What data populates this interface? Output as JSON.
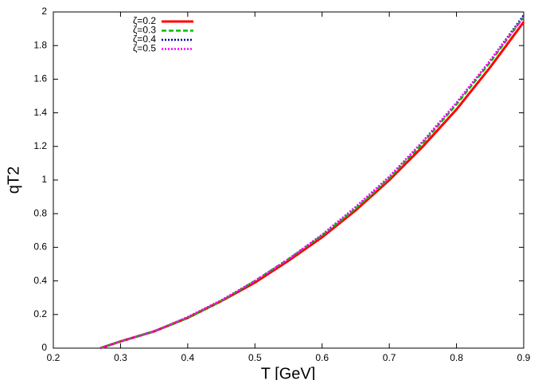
{
  "chart_data": {
    "type": "line",
    "xlabel": "T [GeV]",
    "ylabel": "qT2",
    "x": [
      0.27,
      0.3,
      0.35,
      0.4,
      0.45,
      0.5,
      0.55,
      0.6,
      0.65,
      0.7,
      0.75,
      0.8,
      0.85,
      0.9
    ],
    "series": [
      {
        "name": "ζ=0.2",
        "color": "#ff0000",
        "style": "solid",
        "values": [
          0,
          0.04,
          0.1,
          0.18,
          0.28,
          0.39,
          0.52,
          0.66,
          0.82,
          1.0,
          1.2,
          1.42,
          1.67,
          1.94
        ]
      },
      {
        "name": "ζ=0.3",
        "color": "#00c000",
        "style": "dashed",
        "values": [
          0,
          0.04,
          0.1,
          0.18,
          0.28,
          0.4,
          0.53,
          0.67,
          0.83,
          1.01,
          1.22,
          1.45,
          1.7,
          1.97
        ]
      },
      {
        "name": "ζ=0.4",
        "color": "#0000a0",
        "style": "dotted",
        "values": [
          0,
          0.04,
          0.1,
          0.185,
          0.285,
          0.4,
          0.53,
          0.675,
          0.84,
          1.02,
          1.23,
          1.46,
          1.71,
          1.98
        ]
      },
      {
        "name": "ζ=0.5",
        "color": "#ff00ff",
        "style": "dotted",
        "values": [
          0,
          0.04,
          0.1,
          0.185,
          0.285,
          0.4,
          0.53,
          0.675,
          0.84,
          1.02,
          1.23,
          1.46,
          1.71,
          1.97
        ]
      }
    ],
    "xlim": [
      0.2,
      0.9
    ],
    "ylim": [
      0,
      2
    ],
    "xticks": [
      0.2,
      0.3,
      0.4,
      0.5,
      0.6,
      0.7,
      0.8,
      0.9
    ],
    "yticks": [
      0,
      0.2,
      0.4,
      0.6,
      0.8,
      1,
      1.2,
      1.4,
      1.6,
      1.8,
      2
    ],
    "legend": "top-left"
  }
}
